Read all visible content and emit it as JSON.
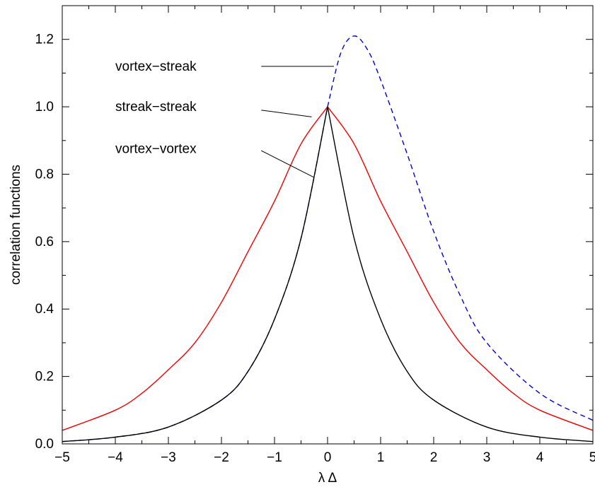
{
  "chart_data": {
    "type": "line",
    "xlabel": "λ Δ",
    "ylabel": "correlation functions",
    "xlim": [
      -5,
      5
    ],
    "ylim": [
      0,
      1.3
    ],
    "x_ticks": [
      "−5",
      "−4",
      "−3",
      "−2",
      "−1",
      "0",
      "1",
      "2",
      "3",
      "4",
      "5"
    ],
    "y_ticks": [
      "0.0",
      "0.2",
      "0.4",
      "0.6",
      "0.8",
      "1.0",
      "1.2"
    ],
    "grid": false,
    "series": [
      {
        "name": "vortex−streak",
        "color": "#0000cc",
        "style": "dashed",
        "x": [
          -5,
          -4,
          -3,
          -2,
          -1.5,
          -1,
          -0.5,
          0,
          0.25,
          0.5,
          0.75,
          1,
          1.5,
          2,
          2.5,
          3,
          4,
          5
        ],
        "y": [
          0.007,
          0.02,
          0.05,
          0.13,
          0.215,
          0.37,
          0.61,
          1.0,
          1.16,
          1.21,
          1.17,
          1.08,
          0.86,
          0.63,
          0.44,
          0.3,
          0.15,
          0.07
        ]
      },
      {
        "name": "streak−streak",
        "color": "#ee0000",
        "style": "solid",
        "x": [
          -5,
          -4,
          -3.5,
          -3,
          -2.5,
          -2,
          -1.5,
          -1,
          -0.5,
          0,
          0.5,
          1,
          1.5,
          2,
          2.5,
          3,
          3.5,
          4,
          5
        ],
        "y": [
          0.04,
          0.1,
          0.15,
          0.22,
          0.3,
          0.42,
          0.57,
          0.72,
          0.89,
          1.0,
          0.89,
          0.72,
          0.57,
          0.42,
          0.3,
          0.22,
          0.15,
          0.1,
          0.04
        ]
      },
      {
        "name": "vortex−vortex",
        "color": "#000000",
        "style": "solid",
        "x": [
          -5,
          -4,
          -3,
          -2,
          -1.5,
          -1,
          -0.5,
          0,
          0.5,
          1,
          1.5,
          2,
          3,
          4,
          5
        ],
        "y": [
          0.007,
          0.02,
          0.05,
          0.13,
          0.215,
          0.37,
          0.61,
          1.0,
          0.61,
          0.37,
          0.215,
          0.13,
          0.05,
          0.02,
          0.007
        ]
      }
    ],
    "annotations": [
      {
        "text": "vortex−streak",
        "label_at": [
          -4.0,
          1.12
        ],
        "line_from": [
          -1.25,
          1.12
        ],
        "line_to": [
          0.12,
          1.12
        ]
      },
      {
        "text": "streak−streak",
        "label_at": [
          -4.0,
          1.0
        ],
        "line_from": [
          -1.25,
          0.99
        ],
        "line_to": [
          -0.3,
          0.97
        ]
      },
      {
        "text": "vortex−vortex",
        "label_at": [
          -4.0,
          0.875
        ],
        "line_from": [
          -1.25,
          0.87
        ],
        "line_to": [
          -0.25,
          0.79
        ]
      }
    ]
  }
}
